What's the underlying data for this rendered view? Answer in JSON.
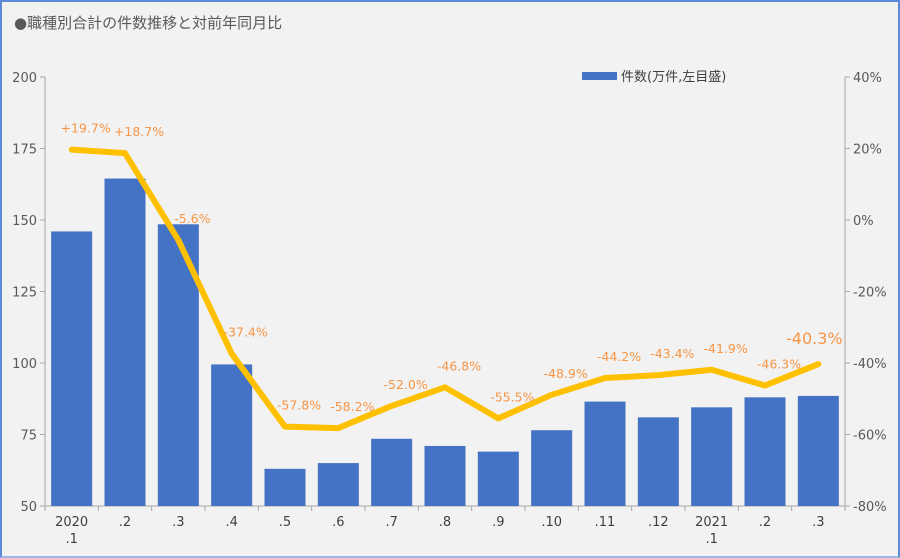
{
  "title": "●職種別合計の件数推移と対前年同月比",
  "chart_data": {
    "type": "bar+line",
    "categories": [
      [
        "2020",
        ".1"
      ],
      [
        ".2"
      ],
      [
        ".3"
      ],
      [
        ".4"
      ],
      [
        ".5"
      ],
      [
        ".6"
      ],
      [
        ".7"
      ],
      [
        ".8"
      ],
      [
        ".9"
      ],
      [
        ".10"
      ],
      [
        ".11"
      ],
      [
        ".12"
      ],
      [
        "2021",
        ".1"
      ],
      [
        ".2"
      ],
      [
        ".3"
      ]
    ],
    "series": [
      {
        "name": "件数(万件,左目盛)",
        "type": "bar",
        "axis": "left",
        "color": "#4472c4",
        "values": [
          146,
          164.5,
          148.5,
          99.5,
          63,
          65,
          73.5,
          71,
          69,
          76.5,
          86.5,
          81,
          84.5,
          88,
          88.5
        ]
      },
      {
        "name": "対前年同月比",
        "type": "line",
        "axis": "right",
        "color": "#ffc000",
        "values": [
          19.7,
          18.7,
          -5.6,
          -37.4,
          -57.8,
          -58.2,
          -52.0,
          -46.8,
          -55.5,
          -48.9,
          -44.2,
          -43.4,
          -41.9,
          -46.3,
          -40.3
        ],
        "labels": [
          "+19.7%",
          "+18.7%",
          "-5.6%",
          "-37.4%",
          "-57.8%",
          "-58.2%",
          "-52.0%",
          "-46.8%",
          "-55.5%",
          "-48.9%",
          "-44.2%",
          "-43.4%",
          "-41.9%",
          "-46.3%",
          "-40.3%"
        ],
        "label_color": "#f79646"
      }
    ],
    "left_axis": {
      "ylim": [
        50,
        200
      ],
      "ticks": [
        "50",
        "75",
        "100",
        "125",
        "150",
        "175",
        "200"
      ]
    },
    "right_axis": {
      "ylim": [
        -80,
        40
      ],
      "ticks": [
        "-80%",
        "-60%",
        "-40%",
        "-20%",
        "0%",
        "20%",
        "40%"
      ]
    },
    "legend": {
      "placement": "top-right",
      "label": "件数(万件,左目盛)"
    }
  }
}
